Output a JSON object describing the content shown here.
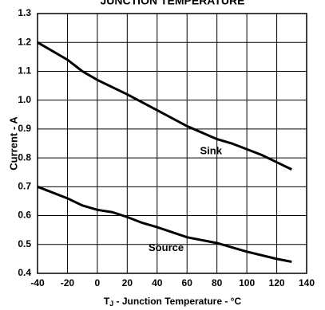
{
  "chart_data": {
    "type": "line",
    "title": "JUNCTION TEMPERATURE",
    "ylabel": "Current - A",
    "xlabel": {
      "main": "T",
      "sub": "J",
      "rest": "  - Junction Temperature - °C"
    },
    "xlim": [
      -40,
      140
    ],
    "xticks": [
      -40,
      -20,
      0,
      20,
      40,
      60,
      80,
      100,
      120,
      140
    ],
    "ylim": [
      0.4,
      1.3
    ],
    "yticks": [
      0.4,
      0.5,
      0.6,
      0.7,
      0.8,
      0.9,
      {
        "value": 1,
        "label": "1.0"
      },
      1.1,
      1.2,
      1.3
    ],
    "grid": true,
    "series": [
      {
        "name": "Sink",
        "color": "#000000",
        "x": [
          -40,
          -20,
          -10,
          0,
          20,
          40,
          60,
          80,
          90,
          110,
          120,
          130
        ],
        "values": [
          1.2,
          1.14,
          1.1,
          1.07,
          1.02,
          0.965,
          0.91,
          0.865,
          0.85,
          0.81,
          0.785,
          0.76
        ]
      },
      {
        "name": "Source",
        "color": "#000000",
        "x": [
          -40,
          -20,
          -10,
          0,
          10,
          20,
          30,
          40,
          60,
          80,
          100,
          120,
          130
        ],
        "values": [
          0.7,
          0.66,
          0.635,
          0.62,
          0.612,
          0.595,
          0.575,
          0.56,
          0.525,
          0.505,
          0.475,
          0.45,
          0.44
        ]
      }
    ]
  }
}
